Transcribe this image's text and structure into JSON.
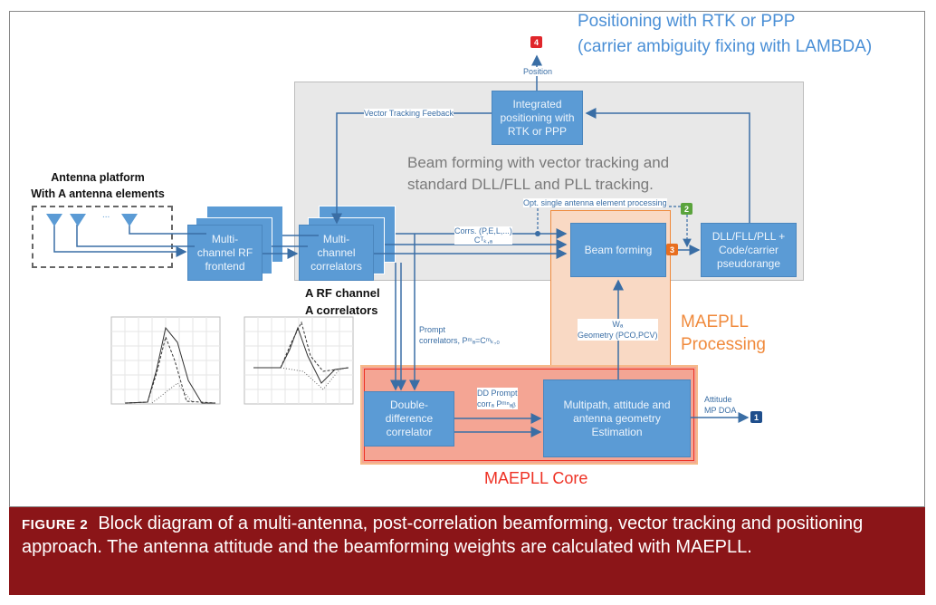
{
  "title": {
    "line1": "Positioning with RTK or PPP",
    "line2": "(carrier ambiguity fixing with LAMBDA)"
  },
  "grey_region_label": {
    "line1": "Beam forming with vector tracking and",
    "line2": "standard DLL/FLL and PLL tracking."
  },
  "antenna": {
    "line1": "Antenna platform",
    "line2": "With A antenna elements",
    "dots": "..."
  },
  "blocks": {
    "rf_frontend": "Multi-channel RF frontend",
    "correlators": "Multi-channel correlators",
    "integrated": "Integrated positioning with RTK or PPP",
    "beam_forming": "Beam forming",
    "dll": "DLL/FLL/PLL + Code/carrier pseudorange",
    "dd_correlator": "Double-difference correlator",
    "multipath": "Multipath, attitude and antenna geometry Estimation"
  },
  "labels": {
    "position": "Position",
    "vector_feedback": "Vector Tracking Feeback",
    "opt_single": "Opt. single antenna element processing",
    "corrs": "Corrs. (P,E,L,...)",
    "corrs_sub": "Cᵀₖ,ₐ",
    "a_rf_1": "A RF channel",
    "a_rf_2": "A correlators",
    "prompt_1": "Prompt",
    "prompt_2": "correlators, Pᵐₐ=Cᵐₖ,₀",
    "weights_1": "Wₐ",
    "weights_2": "Geometry (PCO,PCV)",
    "dd_prompt_1": "DD Prompt",
    "dd_prompt_2": "corrₐ Pᵐⁿₐᵦ",
    "attitude_1": "Attitude",
    "attitude_2": "MP DOA",
    "maepll_processing_1": "MAEPLL",
    "maepll_processing_2": "Processing",
    "maepll_core": "MAEPLL Core"
  },
  "badges": {
    "b1": "1",
    "b2": "2",
    "b3": "3",
    "b4": "4"
  },
  "colors": {
    "block": "#5b9bd5",
    "title": "#4a8fd6",
    "orange": "#f08a3c",
    "core_red": "#ee3124",
    "caption_bg": "#8b1518",
    "badge1": "#1f4e8c",
    "badge2": "#5aa33c",
    "badge3": "#e86e1f",
    "badge4": "#e0262b"
  },
  "caption": {
    "label": "FIGURE 2",
    "text": "Block diagram of a multi-antenna, post-correlation beamforming, vector tracking and positioning approach. The antenna attitude and the beamforming weights are calculated with MAEPLL."
  }
}
